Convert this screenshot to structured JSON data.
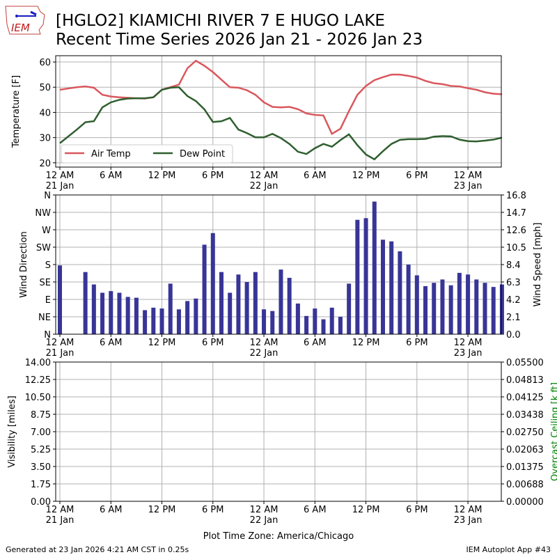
{
  "header": {
    "logo_text": "IEM",
    "title_line1": "[HGLO2] KIAMICHI RIVER 7 E HUGO LAKE",
    "title_line2": "Recent Time Series 2026 Jan 21 - 2026 Jan 23"
  },
  "footer": {
    "generated": "Generated at 23 Jan 2026 4:21 AM CST in 0.25s",
    "app": "IEM Autoplot App #43",
    "xlabel": "Plot Time Zone: America/Chicago"
  },
  "x_ticks": [
    {
      "hour": 0,
      "l1": "12 AM",
      "l2": "21 Jan"
    },
    {
      "hour": 6,
      "l1": "6 AM",
      "l2": ""
    },
    {
      "hour": 12,
      "l1": "12 PM",
      "l2": ""
    },
    {
      "hour": 18,
      "l1": "6 PM",
      "l2": ""
    },
    {
      "hour": 24,
      "l1": "12 AM",
      "l2": "22 Jan"
    },
    {
      "hour": 30,
      "l1": "6 AM",
      "l2": ""
    },
    {
      "hour": 36,
      "l1": "12 PM",
      "l2": ""
    },
    {
      "hour": 42,
      "l1": "6 PM",
      "l2": ""
    },
    {
      "hour": 48,
      "l1": "12 AM",
      "l2": "23 Jan"
    }
  ],
  "colors": {
    "air": "#d9575d",
    "dew": "#2f5e2f",
    "bars": "#383597",
    "ceiling_label": "#008000"
  },
  "chart_data": [
    {
      "type": "line",
      "ylabel": "Temperature [F]",
      "ylim": [
        18.3,
        62.5
      ],
      "yticks": [
        20,
        30,
        40,
        50,
        60
      ],
      "xlim_hours": [
        -0.5,
        52
      ],
      "grid": true,
      "legend": "lower-left",
      "series": [
        {
          "name": "Air Temp",
          "values": [
            49,
            49.5,
            50,
            50.3,
            49.8,
            47,
            46.3,
            46,
            45.8,
            45.6,
            45.5,
            46,
            49,
            50,
            51,
            57.5,
            60.5,
            58.5,
            56,
            53,
            50,
            49.8,
            48.8,
            47,
            44,
            42.2,
            42,
            42.2,
            41.3,
            39.6,
            39,
            38.8,
            31.5,
            33.5,
            40.5,
            47,
            50.5,
            52.8,
            54,
            55,
            55,
            54.5,
            53.8,
            52.5,
            51.6,
            51.2,
            50.5,
            50.3,
            49.6,
            49,
            48,
            47.4,
            47.2
          ]
        },
        {
          "name": "Dew Point",
          "values": [
            27.8,
            30.5,
            33.2,
            36.1,
            36.5,
            42,
            44,
            45,
            45.5,
            45.6,
            45.6,
            46,
            49,
            49.8,
            50,
            46.5,
            44.5,
            41.2,
            36.2,
            36.5,
            37.8,
            33.2,
            31.8,
            30.1,
            30.1,
            31.5,
            29.8,
            27.5,
            24.4,
            23.5,
            25.8,
            27.5,
            26.4,
            29,
            31.3,
            27,
            23.3,
            21.4,
            24.6,
            27.5,
            29.1,
            29.4,
            29.4,
            29.5,
            30.4,
            30.6,
            30.5,
            29.2,
            28.6,
            28.5,
            28.8,
            29.2,
            30
          ]
        }
      ]
    },
    {
      "type": "bar",
      "ylabel": "Wind Direction",
      "y2label": "Wind Speed [mph]",
      "yticks": [
        "N",
        "NE",
        "E",
        "SE",
        "S",
        "SW",
        "W",
        "NW",
        "N"
      ],
      "y2ticks": [
        "0.0",
        "2.1",
        "4.2",
        "6.3",
        "8.4",
        "10.5",
        "12.6",
        "14.7",
        "16.8"
      ],
      "y2lim": [
        0,
        16.8
      ],
      "grid": true,
      "speed_values": [
        8.3,
        null,
        null,
        7.5,
        6.0,
        5.0,
        5.2,
        5.0,
        4.5,
        4.4,
        2.9,
        3.2,
        3.1,
        6.1,
        3.0,
        4.0,
        4.3,
        10.8,
        12.2,
        7.5,
        5.0,
        7.2,
        6.3,
        7.5,
        3.0,
        2.8,
        7.8,
        6.8,
        3.7,
        2.2,
        3.1,
        1.8,
        3.2,
        2.1,
        6.1,
        13.8,
        14.0,
        16.0,
        11.4,
        11.2,
        10.0,
        8.4,
        7.1,
        5.8,
        6.2,
        6.6,
        5.9,
        7.4,
        7.2,
        6.6,
        6.2,
        5.7,
        6.0
      ]
    },
    {
      "type": "line",
      "ylabel": "Visibility [miles]",
      "y2label": "Overcast Ceiling [k ft]",
      "yticks": [
        "0.00",
        "1.75",
        "3.50",
        "5.25",
        "7.00",
        "8.75",
        "10.50",
        "12.25",
        "14.00"
      ],
      "y2ticks": [
        "0.00000",
        "0.00688",
        "0.01375",
        "0.02063",
        "0.02750",
        "0.03438",
        "0.04125",
        "0.04813",
        "0.05500"
      ],
      "ylim": [
        0,
        14
      ],
      "y2lim": [
        0,
        0.055
      ],
      "grid": true,
      "series": []
    }
  ]
}
